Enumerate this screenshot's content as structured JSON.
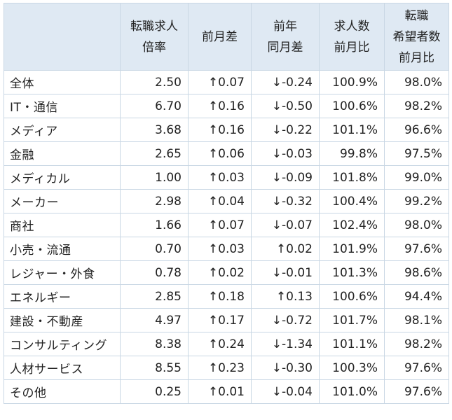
{
  "table": {
    "headers": [
      {
        "line1": "",
        "line2": "",
        "line3": ""
      },
      {
        "line1": "転職求人",
        "line2": "倍率",
        "line3": ""
      },
      {
        "line1": "前月差",
        "line2": "",
        "line3": ""
      },
      {
        "line1": "前年",
        "line2": "同月差",
        "line3": ""
      },
      {
        "line1": "求人数",
        "line2": "前月比",
        "line3": ""
      },
      {
        "line1": "転職",
        "line2": "希望者数",
        "line3": "前月比"
      }
    ],
    "rows": [
      {
        "category": "全体",
        "ratio": "2.50",
        "mom": "↑0.07",
        "yoy": "↓-0.24",
        "jobs_mom": "100.9%",
        "seekers_mom": "98.0%"
      },
      {
        "category": "IT・通信",
        "ratio": "6.70",
        "mom": "↑0.16",
        "yoy": "↓-0.50",
        "jobs_mom": "100.6%",
        "seekers_mom": "98.2%"
      },
      {
        "category": "メディア",
        "ratio": "3.68",
        "mom": "↑0.16",
        "yoy": "↓-0.22",
        "jobs_mom": "101.1%",
        "seekers_mom": "96.6%"
      },
      {
        "category": "金融",
        "ratio": "2.65",
        "mom": "↑0.06",
        "yoy": "↓-0.03",
        "jobs_mom": "99.8%",
        "seekers_mom": "97.5%"
      },
      {
        "category": "メディカル",
        "ratio": "1.00",
        "mom": "↑0.03",
        "yoy": "↓-0.09",
        "jobs_mom": "101.8%",
        "seekers_mom": "99.0%"
      },
      {
        "category": "メーカー",
        "ratio": "2.98",
        "mom": "↑0.04",
        "yoy": "↓-0.32",
        "jobs_mom": "100.4%",
        "seekers_mom": "99.2%"
      },
      {
        "category": "商社",
        "ratio": "1.66",
        "mom": "↑0.07",
        "yoy": "↓-0.07",
        "jobs_mom": "102.4%",
        "seekers_mom": "98.0%"
      },
      {
        "category": "小売・流通",
        "ratio": "0.70",
        "mom": "↑0.03",
        "yoy": "↑0.02",
        "jobs_mom": "101.9%",
        "seekers_mom": "97.6%"
      },
      {
        "category": "レジャー・外食",
        "ratio": "0.78",
        "mom": "↑0.02",
        "yoy": "↓-0.01",
        "jobs_mom": "101.3%",
        "seekers_mom": "98.6%"
      },
      {
        "category": "エネルギー",
        "ratio": "2.85",
        "mom": "↑0.18",
        "yoy": "↑0.13",
        "jobs_mom": "100.6%",
        "seekers_mom": "94.4%"
      },
      {
        "category": "建設・不動産",
        "ratio": "4.97",
        "mom": "↑0.17",
        "yoy": "↓-0.72",
        "jobs_mom": "101.7%",
        "seekers_mom": "98.1%"
      },
      {
        "category": "コンサルティング",
        "ratio": "8.38",
        "mom": "↑0.24",
        "yoy": "↓-1.34",
        "jobs_mom": "101.1%",
        "seekers_mom": "98.2%"
      },
      {
        "category": "人材サービス",
        "ratio": "8.55",
        "mom": "↑0.23",
        "yoy": "↓-0.30",
        "jobs_mom": "100.3%",
        "seekers_mom": "97.6%"
      },
      {
        "category": "その他",
        "ratio": "0.25",
        "mom": "↑0.01",
        "yoy": "↓-0.04",
        "jobs_mom": "101.0%",
        "seekers_mom": "97.6%"
      }
    ]
  },
  "colors": {
    "header_bg": "#dfe9f3",
    "border": "#c9d7e4",
    "text": "#222222"
  }
}
